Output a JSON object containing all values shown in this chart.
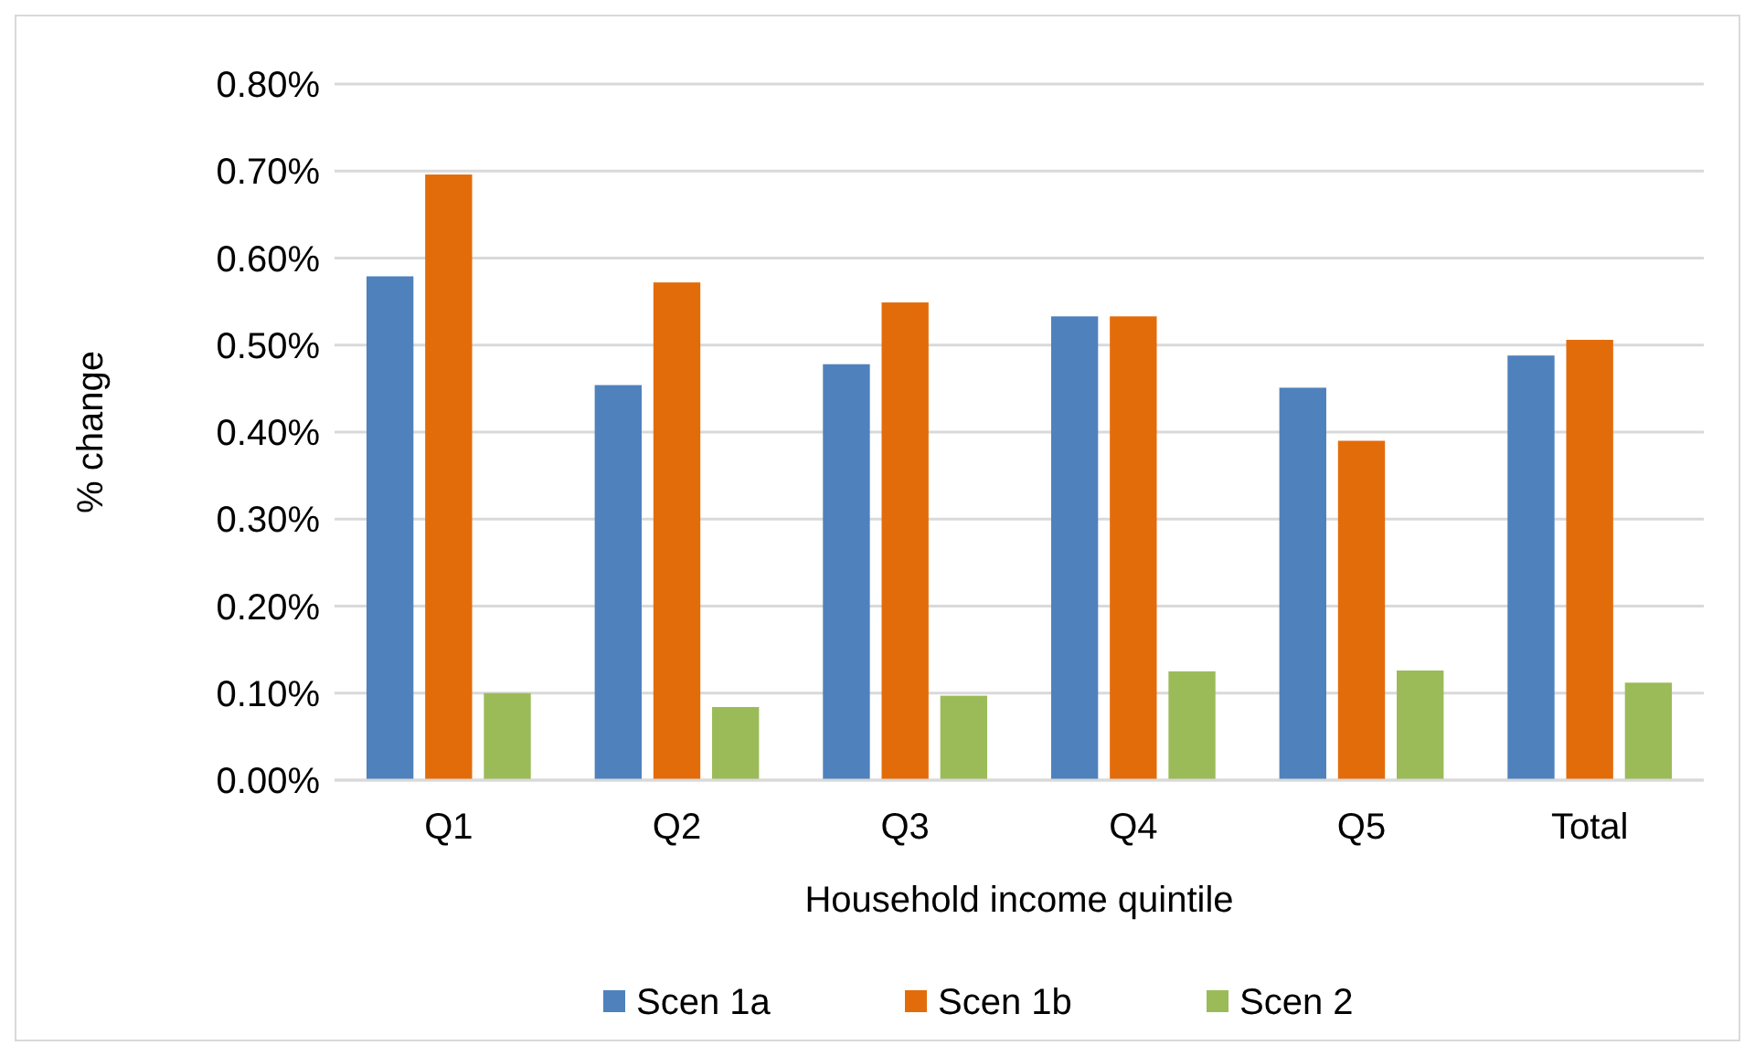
{
  "chart_data": {
    "type": "bar",
    "xlabel": "Household income quintile",
    "ylabel": "% change",
    "categories": [
      "Q1",
      "Q2",
      "Q3",
      "Q4",
      "Q5",
      "Total"
    ],
    "series": [
      {
        "name": "Scen 1a",
        "color": "#4f81bd",
        "values": [
          0.579,
          0.454,
          0.478,
          0.533,
          0.451,
          0.488
        ]
      },
      {
        "name": "Scen 1b",
        "color": "#e36c0a",
        "values": [
          0.696,
          0.572,
          0.549,
          0.533,
          0.39,
          0.506
        ]
      },
      {
        "name": "Scen 2",
        "color": "#9bbb59",
        "values": [
          0.1,
          0.084,
          0.097,
          0.125,
          0.126,
          0.112
        ]
      }
    ],
    "ylim": [
      0,
      0.8
    ],
    "yticks": [
      {
        "value": 0,
        "label": "0.00%"
      },
      {
        "value": 0.1,
        "label": "0.10%"
      },
      {
        "value": 0.2,
        "label": "0.20%"
      },
      {
        "value": 0.3,
        "label": "0.30%"
      },
      {
        "value": 0.4,
        "label": "0.40%"
      },
      {
        "value": 0.5,
        "label": "0.50%"
      },
      {
        "value": 0.6,
        "label": "0.60%"
      },
      {
        "value": 0.7,
        "label": "0.70%"
      },
      {
        "value": 0.8,
        "label": "0.80%"
      }
    ],
    "grid": "y",
    "legend": "bottom"
  }
}
